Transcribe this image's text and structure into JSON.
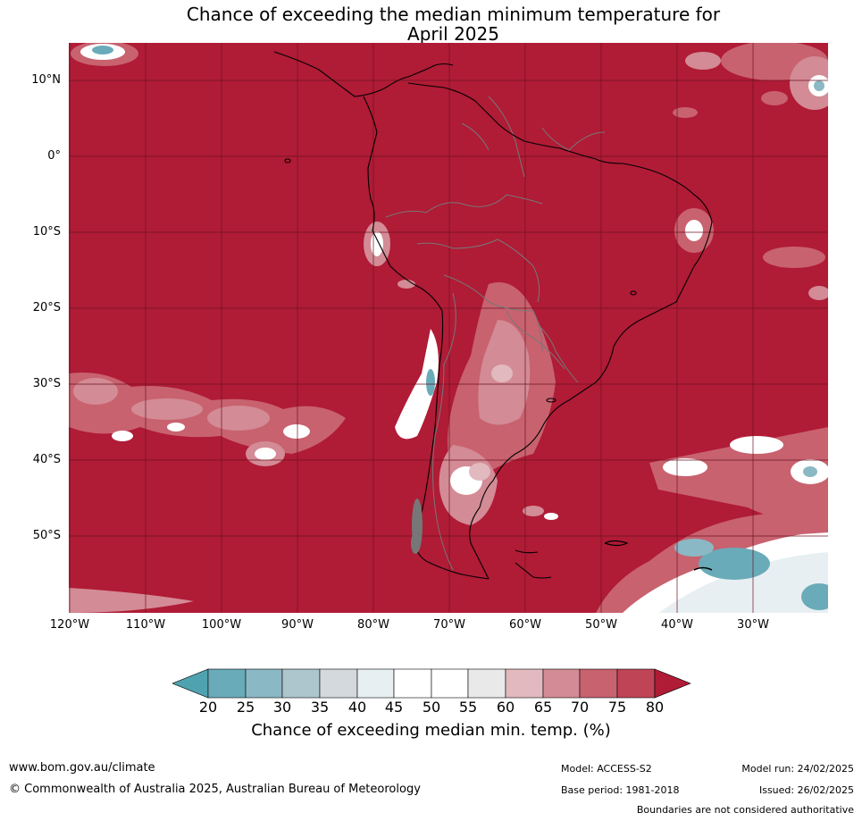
{
  "title": {
    "line1": "Chance of exceeding the median minimum temperature for",
    "line2": "April 2025"
  },
  "map": {
    "lat_labels": [
      "10°N",
      "0°",
      "10°S",
      "20°S",
      "30°S",
      "40°S",
      "50°S"
    ],
    "lon_labels": [
      "120°W",
      "110°W",
      "100°W",
      "90°W",
      "80°W",
      "70°W",
      "60°W",
      "50°W",
      "40°W",
      "30°W"
    ],
    "base_color": "#b01b36",
    "land_line_color": "#000000",
    "border_line_color": "#777777"
  },
  "colorbar": {
    "ticks": [
      "20",
      "25",
      "30",
      "35",
      "40",
      "45",
      "50",
      "55",
      "60",
      "65",
      "70",
      "75",
      "80"
    ],
    "colors": [
      "#4fa3b0",
      "#6aabb9",
      "#8bb8c5",
      "#adc6ce",
      "#d3d9dc",
      "#e8eff2",
      "#ffffff",
      "#ffffff",
      "#e9e9e9",
      "#e1b9bf",
      "#d38b95",
      "#c8626f",
      "#bf4455",
      "#b01b36"
    ],
    "label": "Chance of exceeding median min. temp. (%)"
  },
  "footer": {
    "website": "www.bom.gov.au/climate",
    "copyright": "© Commonwealth of Australia 2025, Australian Bureau of Meteorology",
    "model": "Model: ACCESS-S2",
    "base_period": "Base period: 1981-2018",
    "model_run": "Model run: 24/02/2025",
    "issued": "Issued: 26/02/2025",
    "disclaimer": "Boundaries are not considered authoritative"
  }
}
